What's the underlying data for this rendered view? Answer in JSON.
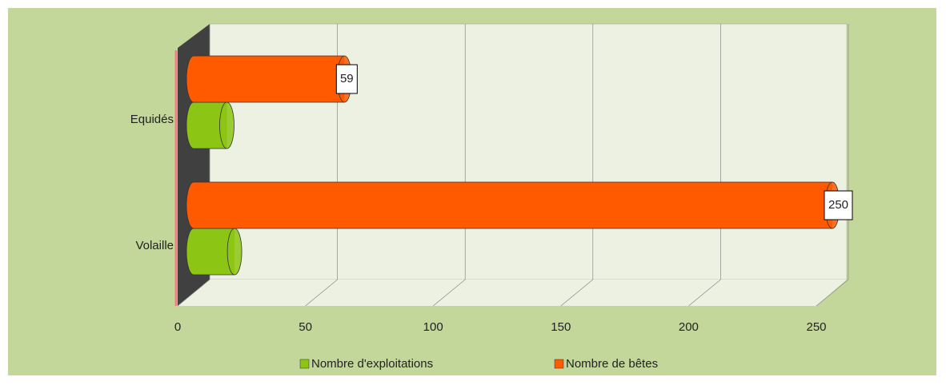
{
  "chart_data": {
    "type": "bar",
    "orientation": "horizontal",
    "categories": [
      "Equidés",
      "Volaille"
    ],
    "series": [
      {
        "name": "Nombre d'exploitations",
        "color": "#8cc513",
        "values": [
          13,
          16
        ],
        "labels": false
      },
      {
        "name": "Nombre de bêtes",
        "color": "#ff5a00",
        "values": [
          59,
          250
        ],
        "labels": true
      }
    ],
    "xlim": [
      0,
      250
    ],
    "xticks": [
      0,
      50,
      100,
      150,
      200,
      250
    ],
    "grid": true,
    "legend": "bottom"
  }
}
